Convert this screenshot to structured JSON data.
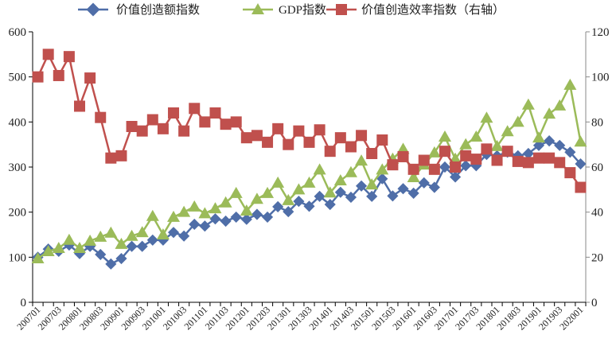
{
  "chart_data": {
    "type": "line",
    "title": "",
    "xlabel": "",
    "ylabel": "",
    "y_left_lim": [
      0,
      600
    ],
    "y_left_ticks": [
      "0",
      "100",
      "200",
      "300",
      "400",
      "500",
      "600"
    ],
    "y_right_lim": [
      0,
      120
    ],
    "y_right_ticks": [
      "0",
      "20",
      "40",
      "60",
      "80",
      "100",
      "120"
    ],
    "grid": false,
    "legend_position": "top",
    "x": [
      "200701",
      "200702",
      "200703",
      "200704",
      "200801",
      "200802",
      "200803",
      "200804",
      "200901",
      "200902",
      "200903",
      "200904",
      "201001",
      "201002",
      "201003",
      "201004",
      "201101",
      "201102",
      "201103",
      "201104",
      "201201",
      "201202",
      "201203",
      "201204",
      "201301",
      "201302",
      "201303",
      "201304",
      "201401",
      "201402",
      "201403",
      "201404",
      "201501",
      "201502",
      "201503",
      "201504",
      "201601",
      "201602",
      "201603",
      "201604",
      "201701",
      "201702",
      "201703",
      "201704",
      "201801",
      "201802",
      "201803",
      "201804",
      "201901",
      "201902",
      "201903",
      "201904",
      "202001"
    ],
    "x_tick_labels": [
      "200701",
      "200703",
      "200801",
      "200803",
      "200901",
      "200903",
      "201001",
      "201003",
      "201101",
      "201103",
      "201201",
      "201203",
      "201301",
      "201303",
      "201401",
      "201403",
      "201501",
      "201503",
      "201601",
      "201603",
      "201701",
      "201703",
      "201801",
      "201803",
      "201901",
      "201903",
      "202001"
    ],
    "series": [
      {
        "name": "价值创造额指数",
        "axis": "left",
        "marker": "diamond",
        "color": "#4F6EA8",
        "values": [
          100,
          118,
          113,
          127,
          108,
          124,
          106,
          85,
          97,
          124,
          124,
          138,
          138,
          155,
          147,
          173,
          169,
          185,
          180,
          189,
          184,
          195,
          189,
          212,
          201,
          224,
          213,
          235,
          217,
          244,
          233,
          258,
          235,
          274,
          236,
          252,
          242,
          265,
          255,
          300,
          278,
          303,
          303,
          328,
          325,
          333,
          325,
          330,
          348,
          358,
          348,
          333,
          307
        ]
      },
      {
        "name": "GDP指数",
        "axis": "left",
        "marker": "triangle",
        "color": "#9BBB59",
        "values": [
          97,
          113,
          120,
          138,
          120,
          136,
          145,
          154,
          129,
          147,
          155,
          191,
          150,
          189,
          200,
          212,
          197,
          208,
          221,
          242,
          203,
          229,
          242,
          265,
          226,
          250,
          265,
          294,
          243,
          270,
          288,
          314,
          261,
          294,
          318,
          340,
          277,
          305,
          332,
          367,
          318,
          350,
          367,
          409,
          346,
          379,
          400,
          438,
          365,
          418,
          436,
          482,
          356
        ]
      },
      {
        "name": "价值创造效率指数（右轴）",
        "axis": "right",
        "marker": "square",
        "color": "#C0504D",
        "values": [
          100,
          110,
          100.6,
          109,
          87,
          99.5,
          82,
          64,
          65,
          78,
          76,
          81,
          77,
          84,
          76,
          86,
          80,
          84,
          79,
          80,
          73,
          74,
          71,
          77,
          70,
          76,
          71,
          76.5,
          67,
          73,
          69,
          74,
          66,
          72,
          61,
          64.6,
          59,
          63,
          59,
          67,
          60,
          65,
          63.5,
          68,
          63,
          67,
          62.5,
          62,
          64,
          64,
          62,
          57.5,
          51
        ]
      }
    ]
  }
}
